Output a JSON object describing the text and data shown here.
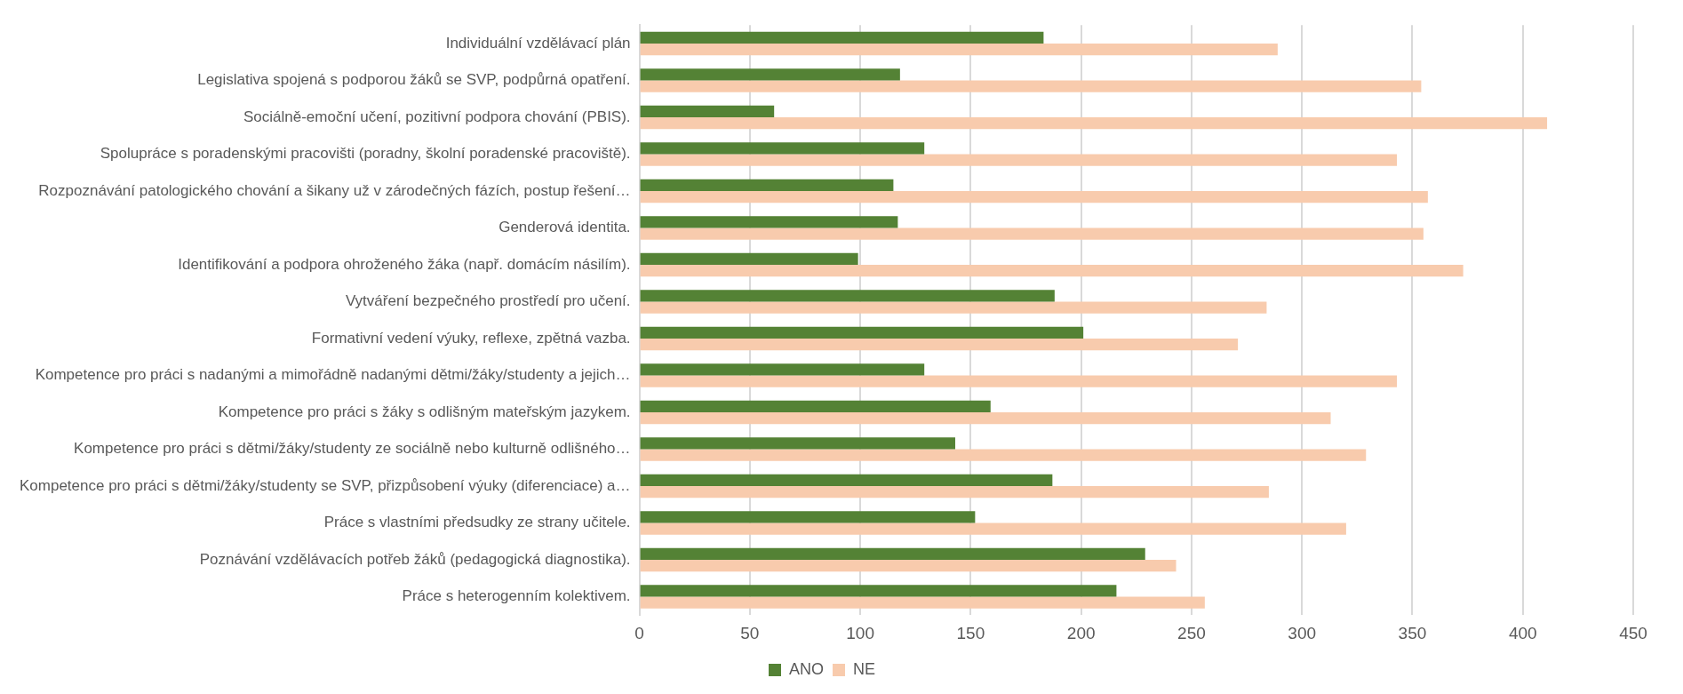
{
  "chart_data": {
    "type": "bar",
    "orientation": "horizontal",
    "categories": [
      "Individuální vzdělávací plán",
      "Legislativa spojená s podporou žáků se SVP, podpůrná opatření.",
      "Sociálně-emoční učení, pozitivní podpora chování (PBIS).",
      "Spolupráce s poradenskými pracovišti (poradny, školní poradenské pracoviště).",
      "Rozpoznávání patologického chování a šikany už v zárodečných fázích, postup řešení…",
      "Genderová identita.",
      "Identifikování a podpora ohroženého žáka (např. domácím násilím).",
      "Vytváření bezpečného prostředí pro učení.",
      "Formativní vedení výuky, reflexe, zpětná vazba.",
      "Kompetence pro práci s nadanými a mimořádně nadanými dětmi/žáky/studenty a jejich…",
      "Kompetence pro práci s žáky s odlišným mateřským jazykem.",
      "Kompetence pro práci s dětmi/žáky/studenty ze sociálně nebo kulturně odlišného…",
      "Kompetence pro práci s dětmi/žáky/studenty se SVP, přizpůsobení výuky (diferenciace) a…",
      "Práce s vlastními předsudky ze strany učitele.",
      "Poznávání vzdělávacích potřeb žáků (pedagogická diagnostika).",
      "Práce s heterogenním kolektivem."
    ],
    "series": [
      {
        "name": "ANO",
        "color": "#548235",
        "values": [
          183,
          118,
          61,
          129,
          115,
          117,
          99,
          188,
          201,
          129,
          159,
          143,
          187,
          152,
          229,
          216
        ]
      },
      {
        "name": "NE",
        "color": "#f8cbad",
        "values": [
          289,
          354,
          411,
          343,
          357,
          355,
          373,
          284,
          271,
          343,
          313,
          329,
          285,
          320,
          243,
          256
        ]
      }
    ],
    "xlim": [
      0,
      450
    ],
    "xticks": [
      0,
      50,
      100,
      150,
      200,
      250,
      300,
      350,
      400,
      450
    ],
    "grid": "x",
    "legend": "bottom"
  }
}
